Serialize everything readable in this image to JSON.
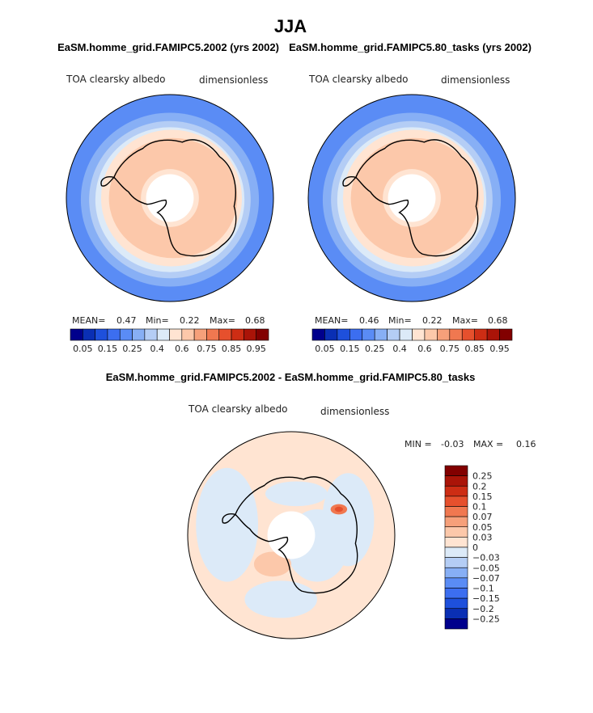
{
  "page": {
    "title": "JJA",
    "colors": {
      "background": "#ffffff",
      "coast": "#000000",
      "ice": "#ffffff"
    }
  },
  "chart_data": [
    {
      "type": "heatmap",
      "projection": "south-polar-stereographic",
      "title": "EaSM.homme_grid.FAMIPC5.2002 (yrs 2002)",
      "field_label": "TOA clearsky albedo",
      "units_label": "dimensionless",
      "stats": {
        "mean_label": "MEAN=",
        "mean": "0.47",
        "min_label": "Min=",
        "min": "0.22",
        "max_label": "Max=",
        "max": "0.68"
      },
      "colorbar": {
        "orientation": "horizontal",
        "tick_labels": [
          "0.05",
          "0.15",
          "0.25",
          "0.4",
          "0.6",
          "0.75",
          "0.85",
          "0.95"
        ],
        "colors": [
          "#00008c",
          "#0a2fb4",
          "#1e50dc",
          "#3c6ef0",
          "#5a8cf5",
          "#87aff5",
          "#b4cdf5",
          "#dceaf8",
          "#ffe4d2",
          "#fcc8aa",
          "#f6a07a",
          "#f07850",
          "#e6502d",
          "#cd2d14",
          "#aa1408",
          "#820000"
        ]
      },
      "regions": [
        "ocean-low-albedo",
        "sea-ice-edge",
        "sea-ice-high-albedo",
        "antarctica",
        "polar-night-no-data"
      ]
    },
    {
      "type": "heatmap",
      "projection": "south-polar-stereographic",
      "title": "EaSM.homme_grid.FAMIPC5.80_tasks (yrs 2002)",
      "field_label": "TOA clearsky albedo",
      "units_label": "dimensionless",
      "stats": {
        "mean_label": "MEAN=",
        "mean": "0.46",
        "min_label": "Min=",
        "min": "0.22",
        "max_label": "Max=",
        "max": "0.68"
      },
      "colorbar": {
        "orientation": "horizontal",
        "tick_labels": [
          "0.05",
          "0.15",
          "0.25",
          "0.4",
          "0.6",
          "0.75",
          "0.85",
          "0.95"
        ],
        "colors": [
          "#00008c",
          "#0a2fb4",
          "#1e50dc",
          "#3c6ef0",
          "#5a8cf5",
          "#87aff5",
          "#b4cdf5",
          "#dceaf8",
          "#ffe4d2",
          "#fcc8aa",
          "#f6a07a",
          "#f07850",
          "#e6502d",
          "#cd2d14",
          "#aa1408",
          "#820000"
        ]
      },
      "regions": [
        "ocean-low-albedo",
        "sea-ice-edge",
        "sea-ice-high-albedo",
        "antarctica",
        "polar-night-no-data"
      ]
    },
    {
      "type": "heatmap",
      "projection": "south-polar-stereographic",
      "title": "EaSM.homme_grid.FAMIPC5.2002 - EaSM.homme_grid.FAMIPC5.80_tasks",
      "field_label": "TOA clearsky albedo",
      "units_label": "dimensionless",
      "stats": {
        "min_label": "MIN =",
        "min": "-0.03",
        "max_label": "MAX =",
        "max": "0.16"
      },
      "colorbar": {
        "orientation": "vertical",
        "tick_labels": [
          "0.25",
          "0.2",
          "0.15",
          "0.1",
          "0.07",
          "0.05",
          "0.03",
          "0",
          "−0.03",
          "−0.05",
          "−0.07",
          "−0.1",
          "−0.15",
          "−0.2",
          "−0.25"
        ],
        "colors": [
          "#820000",
          "#aa1408",
          "#cd2d14",
          "#e6502d",
          "#f07850",
          "#f6a07a",
          "#fcc8aa",
          "#ffe4d2",
          "#dceaf8",
          "#b4cdf5",
          "#87aff5",
          "#5a8cf5",
          "#3c6ef0",
          "#1e50dc",
          "#0a2fb4",
          "#00008c"
        ]
      },
      "regions": [
        "positive-diff-small",
        "negative-diff-small",
        "positive-diff-peak-east-antarctica",
        "positive-diff-ross-sea",
        "polar-night-no-data"
      ]
    }
  ]
}
